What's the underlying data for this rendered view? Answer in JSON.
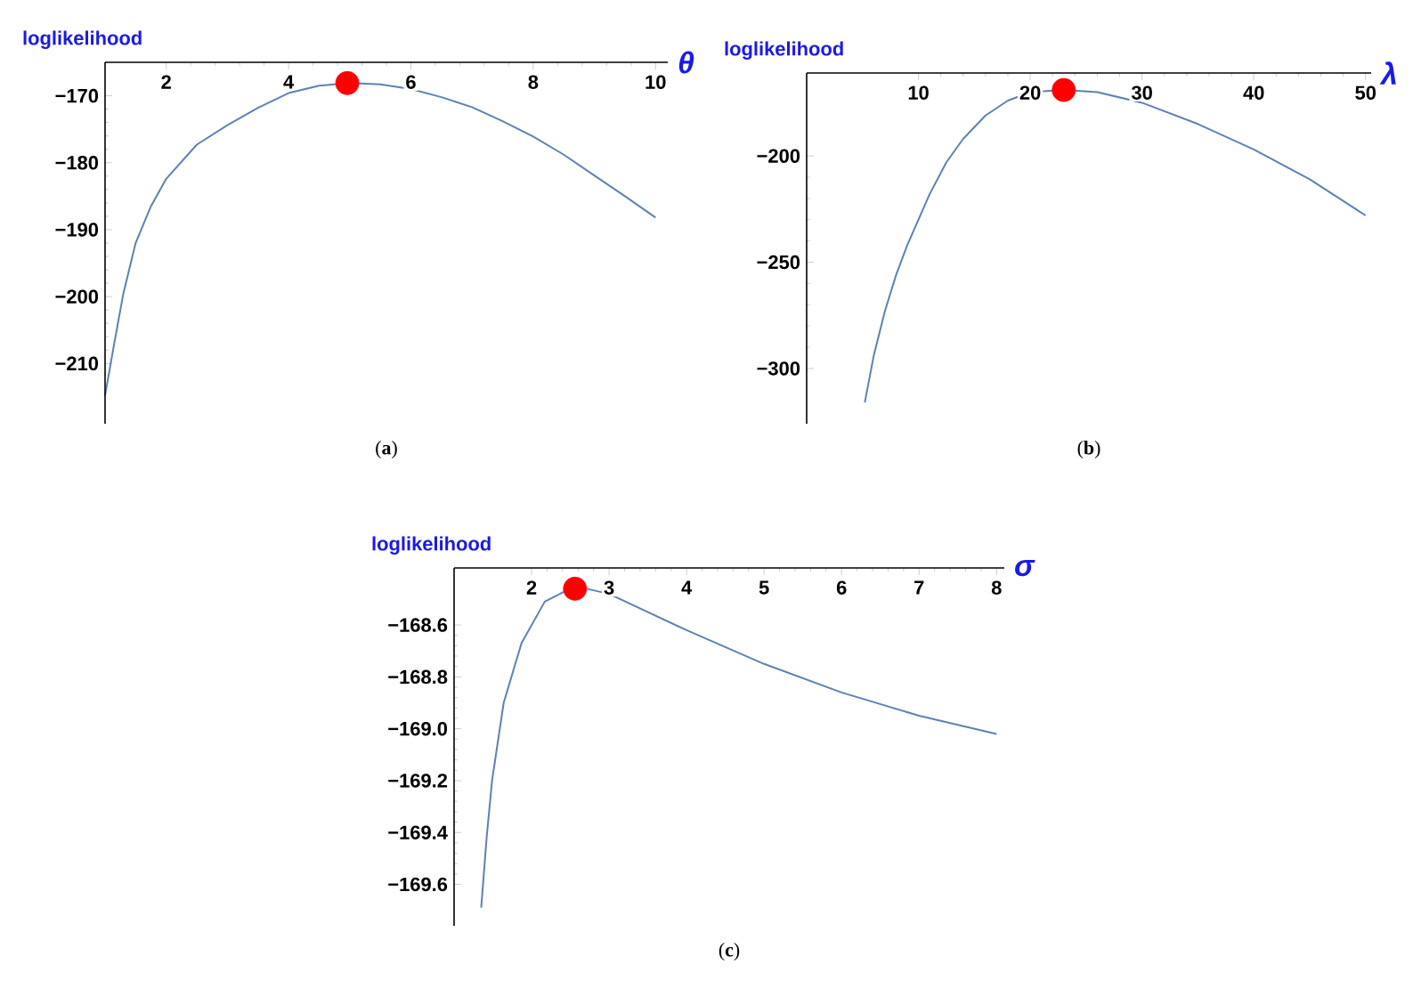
{
  "chart_data": [
    {
      "type": "line",
      "xlabel": "θ",
      "ylabel": "loglikelihood",
      "xlim": [
        1,
        10.2
      ],
      "ylim": [
        -219,
        -165
      ],
      "xticks": [
        2,
        4,
        6,
        8,
        10
      ],
      "yticks": [
        {
          "value": -210,
          "label": "−210"
        },
        {
          "value": -200,
          "label": "−200"
        },
        {
          "value": -190,
          "label": "−190"
        },
        {
          "value": -180,
          "label": "−180"
        },
        {
          "value": -170,
          "label": "−170"
        }
      ],
      "annotations": [
        "(**a**)"
      ],
      "series": [
        {
          "color": "#5e81b5",
          "x": [
            1,
            1.15,
            1.3,
            1.5,
            1.75,
            2,
            2.5,
            3,
            3.5,
            4,
            4.5,
            5,
            5.5,
            6,
            6.5,
            7,
            7.5,
            8,
            8.5,
            9,
            9.5,
            10
          ],
          "values": [
            -214.8,
            -207,
            -199.5,
            -192,
            -186.5,
            -182.4,
            -177.3,
            -174.4,
            -171.8,
            -169.6,
            -168.5,
            -168.1,
            -168.3,
            -169,
            -170.2,
            -171.7,
            -173.8,
            -176.1,
            -178.8,
            -181.9,
            -185,
            -188.2
          ]
        },
        {
          "type": "scatter",
          "color": "#ff0000",
          "marker": "circle",
          "x": [
            4.96
          ],
          "values": [
            -168.1
          ]
        }
      ]
    },
    {
      "type": "line",
      "xlabel": "λ",
      "ylabel": "loglikelihood",
      "xlim": [
        0,
        50.5
      ],
      "ylim": [
        -326,
        -161
      ],
      "xticks": [
        10,
        20,
        30,
        40,
        50
      ],
      "yticks": [
        {
          "value": -300,
          "label": "−300"
        },
        {
          "value": -250,
          "label": "−250"
        },
        {
          "value": -200,
          "label": "−200"
        }
      ],
      "annotations": [
        "(**b**)"
      ],
      "series": [
        {
          "color": "#5e81b5",
          "x": [
            5.2,
            6,
            7,
            8,
            9,
            10,
            11,
            12.5,
            14,
            16,
            18,
            20,
            23,
            26,
            30,
            35,
            40,
            45,
            50
          ],
          "values": [
            -316,
            -294,
            -273,
            -256,
            -242,
            -230,
            -218,
            -203,
            -192,
            -181,
            -174,
            -170,
            -169,
            -170,
            -175,
            -185,
            -197,
            -211,
            -228
          ]
        },
        {
          "type": "scatter",
          "color": "#ff0000",
          "marker": "circle",
          "x": [
            23
          ],
          "values": [
            -169
          ]
        }
      ]
    },
    {
      "type": "line",
      "xlabel": "σ",
      "ylabel": "loglikelihood",
      "xlim": [
        1,
        8.1
      ],
      "ylim": [
        -169.76,
        -168.38
      ],
      "xticks": [
        2,
        3,
        4,
        5,
        6,
        7,
        8
      ],
      "yticks": [
        {
          "value": -169.6,
          "label": "−169.6"
        },
        {
          "value": -169.4,
          "label": "−169.4"
        },
        {
          "value": -169.2,
          "label": "−169.2"
        },
        {
          "value": -169.0,
          "label": "−169.0"
        },
        {
          "value": -168.8,
          "label": "−168.8"
        },
        {
          "value": -168.6,
          "label": "−168.6"
        }
      ],
      "annotations": [
        "(**c**)"
      ],
      "series": [
        {
          "color": "#5e81b5",
          "x": [
            1.35,
            1.42,
            1.49,
            1.64,
            1.87,
            2.17,
            2.56,
            3,
            4,
            5,
            6,
            7,
            8
          ],
          "values": [
            -169.69,
            -169.42,
            -169.2,
            -168.9,
            -168.67,
            -168.51,
            -168.45,
            -168.48,
            -168.62,
            -168.75,
            -168.86,
            -168.95,
            -169.02
          ]
        },
        {
          "type": "scatter",
          "color": "#ff0000",
          "marker": "circle",
          "x": [
            2.56
          ],
          "values": [
            -168.46
          ]
        }
      ]
    }
  ]
}
